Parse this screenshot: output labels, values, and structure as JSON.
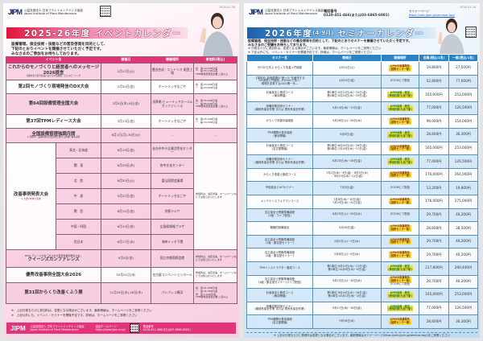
{
  "left": {
    "date_stamp": "2026.01.26",
    "org_jp": "公益社団法人 日本プラントメンテナンス協会",
    "org_en": "Japan Institute of Plant Maintenance",
    "logo": "JIPM",
    "title": "2025-26年度 イベントカレンダー",
    "intro": [
      "設備管理、保全技術・技能などの普及啓発を目的として、",
      "下記のとおりイベントを開催させていただく予定です。",
      "みなさまのご参加をお待ちしております。"
    ],
    "headers": [
      "イベント名",
      "開催日",
      "開催場所",
      "参加料(税込)"
    ],
    "rows": [
      {
        "name": "これからのモノづくりと経営者へのメッセージ 2026提言",
        "sub": "今後を担う若手社員におけるAI活用術、ウェルビーイング",
        "date": "2月17日(火)",
        "venue": "豊田合成・エントリオ 尾西工場",
        "fee": [
          "会　員:44,000円/名",
          "一　般:55,100円/名",
          "TPM優秀賞受賞企業:二名以上"
        ]
      },
      {
        "name": "第2回モノづくり現場発信のDX大会",
        "date": "2月20日(金)",
        "venue": "ポートメッセなごや",
        "fee": [
          "会　員:33,000円/名",
          "一　般:44,000円/名"
        ]
      },
      {
        "name": "第64回設備管理全国大会",
        "date": "3月5日(木)-6日(金)",
        "venue": "浅草橋 ヒューリックホール&カンファレンス",
        "fee": [
          "会　員:55,000円/名",
          "一　般:66,000円/名",
          "TPM優秀賞受賞企業:二名以上"
        ]
      },
      {
        "name": "第37回TPMレディース大会",
        "date": "3月13日(金)",
        "venue": "ポートメッセなごや",
        "fee": [
          "会　員:25,300円/名",
          "一　般:34,300円/名"
        ]
      },
      {
        "name": "全国設備管理強調月間",
        "sub": "※ 期間中、設備管理の普及啓発に関する各種行事を実施",
        "date": "6月1日(月)-30日(火)",
        "venue": "–",
        "fee": [
          "–"
        ]
      }
    ],
    "kaizen": {
      "name": "改善事例発表大会",
      "sub": "※ 全国7地域で開催",
      "fee": "参加料は、決定次第、ホームページなどでお知らせいたします",
      "regions": [
        {
          "region": "東北・北海道",
          "date": "6月19日(金)",
          "venue": "仙台市中小企業活性化センター"
        },
        {
          "region": "関　東",
          "date": "6月25日(木)",
          "venue": "府中文化センター"
        },
        {
          "region": "北　陸",
          "date": "6月30日(火)",
          "venue": "富山国際会議場"
        },
        {
          "region": "中　部",
          "date": "5月22日(金)",
          "venue": "ポートメッセなごや"
        },
        {
          "region": "関　西",
          "date": "6月12日(金)",
          "venue": "京都テルサ"
        },
        {
          "region": "中国・四国",
          "date": "6月19日(金)",
          "venue": "広島県情報プラザ"
        },
        {
          "region": "西日本",
          "date": "6月17日(水)",
          "venue": "海峡メッセ下関"
        }
      ]
    },
    "rows_after": [
      {
        "name": "クイーンズカンファレンス",
        "sub": "TPMレディース大会「きらめき賞受賞事例発表大会」",
        "date": "9月4日(金)",
        "venue": "国立京都国際会館",
        "fee": [
          "参加料は、決定次第、ホームページなどでお知らせいたします"
        ]
      },
      {
        "name": "優秀改善事例全国大会2026",
        "date": "10月21日(水)",
        "venue": "名古屋コンベンションホール",
        "fee": [
          "参加料は、決定次第、ホームページなどでお知らせいたします"
        ]
      },
      {
        "name": "第31回からくり改善くふう展",
        "date": "11月25日(水)-26日(木)",
        "venue": "パシフィコ横浜",
        "fee": [
          "会　員:21,450円/名",
          "一　般:31,350円/名",
          "学　生:1,100円/名",
          "TPM優秀賞受賞企業:二名以上"
        ]
      }
    ],
    "notes": [
      "※　上記日程ならびに参加料は、変更となる場合がございます。最新情報は、ホームページをご参照ください",
      "※　上記以外にも、イベント・セミナーを開催予定です。詳細は、ホームページをご参照ください"
    ],
    "footer": {
      "org_jp": "公益社団法人 日本プラントメンテナンス協会",
      "org_en": "Japan Institute of Plant Maintenance",
      "hp_label": "協会ホームページ",
      "hp_url": "https://www.jipm.or.jp/",
      "tel_label": "電話番号",
      "tel": "0120-451-466(または03-6865-6081)"
    },
    "accent": "#e3347a"
  },
  "right": {
    "date_stamp": "2026.01.26",
    "org_jp": "公益社団法人 日本プラントメンテナンス協会",
    "org_en": "Japan Institute of Plant Maintenance",
    "logo": "JIPM",
    "tel_label": "電話番号",
    "tel": "0120-451-466(または03-6865-6081)",
    "page_label": "セミナーページ",
    "page_url": "https://info.jipm.jp/seminar-top/",
    "title_main": "2026年度",
    "title_paren": "(4-9月)",
    "title_rest": "セミナーカレンダー",
    "intro": [
      "設備管理、保全技術・技能などの普及啓発を目的として、下記のとおりセミナーを開催させていただく予定です。",
      "みなさまのご受講をお待ちしております。"
    ],
    "notes": [
      "※ 日程ならびに参加料は、変更となる場合がございます。最新情報は、ホームページをご参照ください",
      "※ 下記以外にも、イベント・セミナーを開催予定です。詳細は、ホームページをご参照ください"
    ],
    "headers": [
      "セミナー名",
      "開催日",
      "開催場所",
      "会員(税込/1名)",
      "一般(税込/1名)"
    ],
    "venues": {
      "chubu": [
        "JIPM中部事務所",
        "(国際センター駅)"
      ],
      "tokyo": [
        "JIPM本部・東京",
        "(神保町駅/九段下駅)"
      ],
      "zoom": "ZOOMにて配信"
    },
    "rows": [
      {
        "name": [
          "ゼロから学ぶ からくり改善入門講座"
        ],
        "date": [
          "4月14日(火)"
        ],
        "venue": [
          "chubu"
        ],
        "member": "19,800円",
        "general": "27,500円"
      },
      {
        "name": [
          "【事前Ⅱ】製造現場の\"困った\"を解決する",
          "DX実践入門講座―Pythonで拓く!",
          "現場を変革するDXの第一歩―"
        ],
        "date": [
          "4月24日(金)"
        ],
        "venue": [
          "zoom"
        ],
        "member": "52,800円",
        "general": "77,000円"
      },
      {
        "name": [
          "計画保全士養成コース",
          "(東京開催)"
        ],
        "date": [
          "第1単位:5月13日(水)~15日(金)",
          "第2単位:5月28日(木)~29日(金)"
        ],
        "venue": [
          "tokyo"
        ],
        "member": "165,000円",
        "general": "253,000円"
      },
      {
        "name": [
          "設備診断技術セミナー",
          "(機械系保全作業 または 電気系保全作業)"
        ],
        "date": [
          "5月14日(木)~15日(金)"
        ],
        "venue": [
          "tokyo"
        ],
        "member": "77,000円",
        "general": "126,500円"
      },
      {
        "name": [
          "からくり改善中級講座"
        ],
        "date": [
          "5月26日(火)~28日(木)"
        ],
        "venue": [
          "chubu"
        ],
        "member": "99,000円",
        "general": "154,000円"
      },
      {
        "name": [
          "TPM展開の基本講座",
          "(東京開催)"
        ],
        "date": [
          "6月5日(金)"
        ],
        "venue": [
          "tokyo"
        ],
        "member": "28,600円",
        "general": "36,300円"
      },
      {
        "name": [
          "計画保全士養成コース",
          "(名古屋開催)"
        ],
        "date": [
          "第1単位:6月24日(水)~26日(金)",
          "第2単位:7月16日(木)~17日(金)"
        ],
        "venue": [
          "chubu"
        ],
        "member": "165,000円",
        "general": "253,000円"
      },
      {
        "name": [
          "設備診断技術セミナー",
          "(機械系保全作業 または 電気系保全作業)"
        ],
        "date": [
          "6月25日(木)~26日(金)"
        ],
        "venue": [
          "tokyo"
        ],
        "member": "77,000円",
        "general": "126,500円"
      },
      {
        "name": [
          "からくり改善士養成コース"
        ],
        "date": [
          "7月2日(木)~3日(金)・8月5日(水)",
          "・9月10日(木)~11日(金)"
        ],
        "venue": [
          "chubu"
        ],
        "member": "176,000円",
        "general": "264,000円"
      },
      {
        "name": [
          "予知保全とIoTセミナー"
        ],
        "date": [
          "7月3日(金)"
        ],
        "venue": [
          "zoom"
        ],
        "member": "13,200円",
        "general": "19,800円"
      },
      {
        "name": [
          "メンテナンスフォアマンコース"
        ],
        "date": [
          "7月8日(水)~10日(金)",
          "7月29日(水)~31日(金)"
        ],
        "venue": [
          "chubu"
        ],
        "member": "176,000円",
        "general": "275,000円"
      },
      {
        "name": [
          "自主保全士受験準備講座",
          "(2級・ライブ配信)"
        ],
        "date": [
          "8月25日(火)~26日(水)"
        ],
        "venue": [
          "zoom"
        ],
        "member": "29,700円",
        "general": "46,200円"
      },
      {
        "name": [
          "戦略的設備保全"
        ],
        "date": [
          "8月28日(金)"
        ],
        "venue": [
          "chubu"
        ],
        "member": "28,600円",
        "general": "38,500円"
      },
      {
        "name": [
          "自主保全士受験準備講座",
          "(1級・集合型セミナー)"
        ],
        "date": [
          "9月1日(火)~2日(水)"
        ],
        "venue": [
          "chubu"
        ],
        "member": "29,700円",
        "general": "46,200円"
      },
      {
        "name": [
          "自主保全士受験準備講座",
          "(2級・集合型セミナー)"
        ],
        "date": [
          "9月8日(火)~9日(水)"
        ],
        "venue": [
          "chubu"
        ],
        "member": "29,700円",
        "general": "46,200円"
      },
      {
        "name": [
          "TPMインストラクター養成コース"
        ],
        "date": [
          "第1単位:9月10日(木)~11日(金)",
          "第2単位:10月8日(木)~9日(金)"
        ],
        "venue": [
          "tokyo"
        ],
        "member": "217,800円",
        "general": "290,400円"
      },
      {
        "name": [
          "自主保全士受験準備講座",
          "(1級・集合型セミナー/ライブ配信)"
        ],
        "date": [
          "9月15日(火)~16日(水)"
        ],
        "venue": [
          "chubu",
          "zoom"
        ],
        "member": "29,700円",
        "general": "46,200円"
      },
      {
        "name": [
          "計画保全士養成コース",
          "(東京開催)"
        ],
        "date": [
          "第1単位:9月16日(水)~18日(金)",
          "第2単位:10月1日(木)~2日(金)"
        ],
        "venue": [
          "tokyo"
        ],
        "member": "165,000円",
        "general": "253,000円"
      },
      {
        "name": [
          "設備診断技術セミナー",
          "(機械系保全作業 または 電気系保全作業)"
        ],
        "date": [
          "9月17日(木)~18日(金)"
        ],
        "venue": [
          "tokyo"
        ],
        "member": "77,000円",
        "general": "126,500円"
      },
      {
        "name": [
          "TPM展開の基本講座",
          "(名古屋開催)"
        ],
        "date": [
          "9月16日(水)"
        ],
        "venue": [
          "chubu"
        ],
        "member": "28,600円",
        "general": "36,300円"
      }
    ],
    "footer_note": "※ 上記の日程ならびに受講料は変更となる場合がございます。最新情報はセミナーページ(https://info.jipm.jp/seminar-top/)をご参照ください",
    "accent": "#2c83c4"
  }
}
